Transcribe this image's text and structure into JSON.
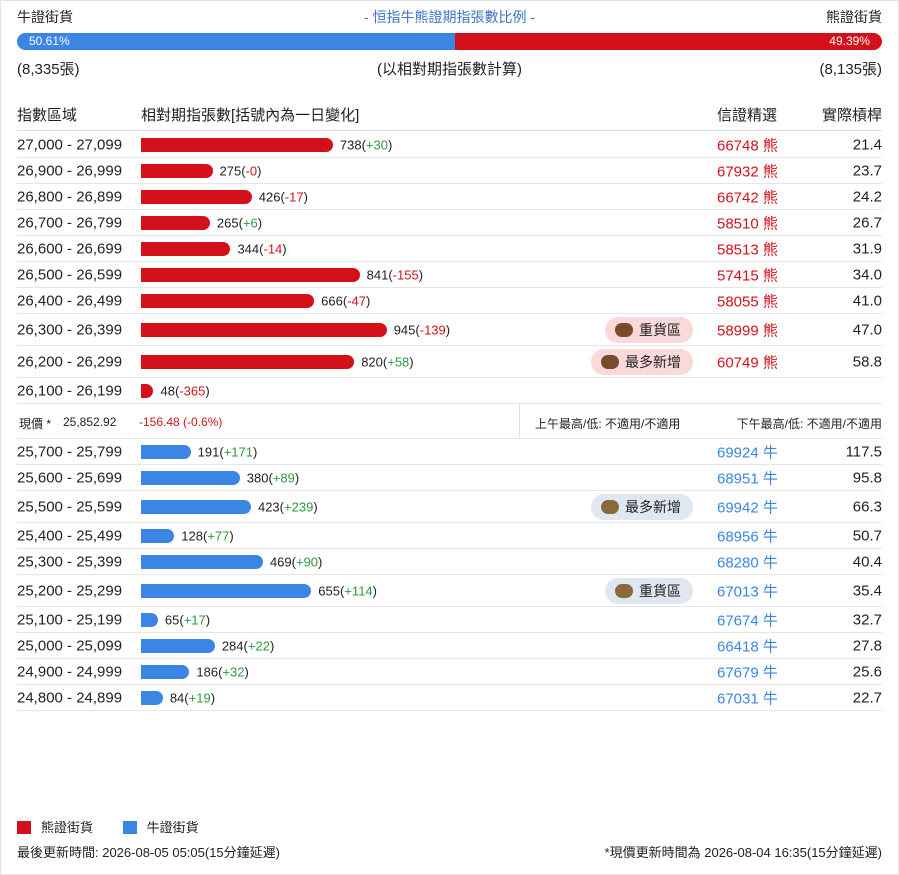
{
  "header": {
    "bull_label": "牛證街貨",
    "title": "- 恒指牛熊證期指張數比例 -",
    "bear_label": "熊證街貨"
  },
  "ratio": {
    "bull": {
      "value": 50.61,
      "label": "50.61%"
    },
    "bear": {
      "value": 49.39,
      "label": "49.39%"
    },
    "bull_total": "(8,335張)",
    "note": "(以相對期指張數計算)",
    "bear_total": "(8,135張)"
  },
  "columns": [
    "指數區域",
    "相對期指張數[括號內為一日變化]",
    "信證精選",
    "實際槓桿"
  ],
  "colors": {
    "bear": "#d4111b",
    "bull": "#3b86e5"
  },
  "bear": {
    "rows": [
      {
        "range": "27,000 - 27,099",
        "count": 738,
        "change": {
          "value": 30,
          "label": "+30"
        },
        "pick": "66748 熊",
        "leverage": "21.4"
      },
      {
        "range": "26,900 - 26,999",
        "count": 275,
        "change": {
          "value": 0,
          "label": "-0"
        },
        "pick": "67932 熊",
        "leverage": "23.7"
      },
      {
        "range": "26,800 - 26,899",
        "count": 426,
        "change": {
          "value": -17,
          "label": "-17"
        },
        "pick": "66742 熊",
        "leverage": "24.2"
      },
      {
        "range": "26,700 - 26,799",
        "count": 265,
        "change": {
          "value": 6,
          "label": "+6"
        },
        "pick": "58510 熊",
        "leverage": "26.7"
      },
      {
        "range": "26,600 - 26,699",
        "count": 344,
        "change": {
          "value": -14,
          "label": "-14"
        },
        "pick": "58513 熊",
        "leverage": "31.9"
      },
      {
        "range": "26,500 - 26,599",
        "count": 841,
        "change": {
          "value": -155,
          "label": "-155"
        },
        "pick": "57415 熊",
        "leverage": "34.0"
      },
      {
        "range": "26,400 - 26,499",
        "count": 666,
        "change": {
          "value": -47,
          "label": "-47"
        },
        "pick": "58055 熊",
        "leverage": "41.0"
      },
      {
        "range": "26,300 - 26,399",
        "count": 945,
        "change": {
          "value": -139,
          "label": "-139"
        },
        "badge": "重貨區",
        "pick": "58999 熊",
        "leverage": "47.0"
      },
      {
        "range": "26,200 - 26,299",
        "count": 820,
        "change": {
          "value": 58,
          "label": "+58"
        },
        "badge": "最多新增",
        "pick": "60749 熊",
        "leverage": "58.8"
      },
      {
        "range": "26,100 - 26,199",
        "count": 48,
        "change": {
          "value": -365,
          "label": "-365"
        }
      }
    ]
  },
  "current": {
    "label": "現價 *",
    "price": "25,852.92",
    "change": "-156.48 (-0.6%)",
    "am": "上午最高/低: 不適用/不適用",
    "pm": "下午最高/低: 不適用/不適用"
  },
  "bull": {
    "rows": [
      {
        "range": "25,700 - 25,799",
        "count": 191,
        "change": {
          "value": 171,
          "label": "+171"
        },
        "pick": "69924 牛",
        "leverage": "117.5"
      },
      {
        "range": "25,600 - 25,699",
        "count": 380,
        "change": {
          "value": 89,
          "label": "+89"
        },
        "pick": "68951 牛",
        "leverage": "95.8"
      },
      {
        "range": "25,500 - 25,599",
        "count": 423,
        "change": {
          "value": 239,
          "label": "+239"
        },
        "badge": "最多新增",
        "pick": "69942 牛",
        "leverage": "66.3"
      },
      {
        "range": "25,400 - 25,499",
        "count": 128,
        "change": {
          "value": 77,
          "label": "+77"
        },
        "pick": "68956 牛",
        "leverage": "50.7"
      },
      {
        "range": "25,300 - 25,399",
        "count": 469,
        "change": {
          "value": 90,
          "label": "+90"
        },
        "pick": "68280 牛",
        "leverage": "40.4"
      },
      {
        "range": "25,200 - 25,299",
        "count": 655,
        "change": {
          "value": 114,
          "label": "+114"
        },
        "badge": "重貨區",
        "pick": "67013 牛",
        "leverage": "35.4"
      },
      {
        "range": "25,100 - 25,199",
        "count": 65,
        "change": {
          "value": 17,
          "label": "+17"
        },
        "pick": "67674 牛",
        "leverage": "32.7"
      },
      {
        "range": "25,000 - 25,099",
        "count": 284,
        "change": {
          "value": 22,
          "label": "+22"
        },
        "pick": "66418 牛",
        "leverage": "27.8"
      },
      {
        "range": "24,900 - 24,999",
        "count": 186,
        "change": {
          "value": 32,
          "label": "+32"
        },
        "pick": "67679 牛",
        "leverage": "25.6"
      },
      {
        "range": "24,800 - 24,899",
        "count": 84,
        "change": {
          "value": 19,
          "label": "+19"
        },
        "pick": "67031 牛",
        "leverage": "22.7"
      }
    ]
  },
  "legend": {
    "bear": "熊證街貨",
    "bull": "牛證街貨"
  },
  "footer": {
    "updated": "最後更新時間: 2026-08-05 05:05(15分鐘延遲)",
    "price_note": "*現價更新時間為 2026-08-04 16:35(15分鐘延遲)"
  }
}
